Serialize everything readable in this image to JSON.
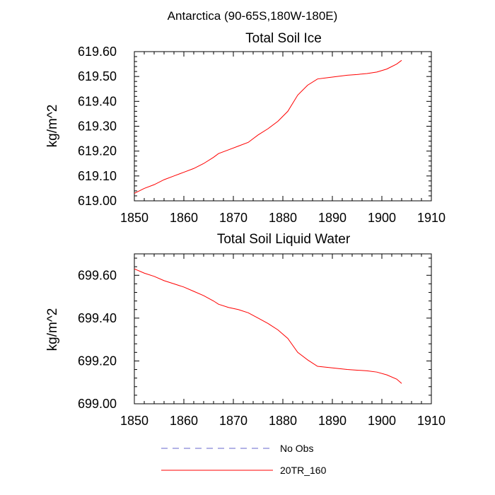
{
  "figure": {
    "title": "Antarctica (90-65S,180W-180E)"
  },
  "chart_data": [
    {
      "type": "line",
      "title": "Total Soil Ice",
      "xlabel": "",
      "ylabel": "kg/m^2",
      "xlim": [
        1850,
        1910
      ],
      "ylim": [
        619.0,
        619.6
      ],
      "xticks": [
        1850,
        1860,
        1870,
        1880,
        1890,
        1900,
        1910
      ],
      "xtick_labels": [
        "1850",
        "1860",
        "1870",
        "1880",
        "1890",
        "1900",
        "1910"
      ],
      "yticks": [
        619.0,
        619.1,
        619.2,
        619.3,
        619.4,
        619.5,
        619.6
      ],
      "ytick_labels": [
        "619.00",
        "619.10",
        "619.20",
        "619.30",
        "619.40",
        "619.50",
        "619.60"
      ],
      "series": [
        {
          "name": "20TR_160",
          "color": "#ff0000",
          "x": [
            1850,
            1852,
            1854,
            1856,
            1858,
            1860,
            1862,
            1864,
            1866,
            1867,
            1869,
            1871,
            1873,
            1875,
            1877,
            1879,
            1881,
            1883,
            1885,
            1887,
            1889,
            1891,
            1893,
            1895,
            1897,
            1899,
            1901,
            1903,
            1904
          ],
          "values": [
            619.03,
            619.05,
            619.065,
            619.085,
            619.1,
            619.115,
            619.13,
            619.15,
            619.175,
            619.19,
            619.205,
            619.22,
            619.235,
            619.265,
            619.29,
            619.32,
            619.36,
            619.425,
            619.465,
            619.49,
            619.495,
            619.5,
            619.505,
            619.508,
            619.512,
            619.518,
            619.53,
            619.55,
            619.565
          ]
        }
      ]
    },
    {
      "type": "line",
      "title": "Total Soil Liquid Water",
      "xlabel": "",
      "ylabel": "kg/m^2",
      "xlim": [
        1850,
        1910
      ],
      "ylim": [
        699.0,
        699.7
      ],
      "xticks": [
        1850,
        1860,
        1870,
        1880,
        1890,
        1900,
        1910
      ],
      "xtick_labels": [
        "1850",
        "1860",
        "1870",
        "1880",
        "1890",
        "1900",
        "1910"
      ],
      "yticks": [
        699.0,
        699.2,
        699.4,
        699.6
      ],
      "ytick_labels": [
        "699.00",
        "699.20",
        "699.40",
        "699.60"
      ],
      "series": [
        {
          "name": "20TR_160",
          "color": "#ff0000",
          "x": [
            1850,
            1852,
            1854,
            1856,
            1858,
            1860,
            1862,
            1864,
            1866,
            1867,
            1869,
            1871,
            1873,
            1875,
            1877,
            1879,
            1881,
            1883,
            1885,
            1887,
            1889,
            1891,
            1893,
            1895,
            1897,
            1899,
            1901,
            1903,
            1904
          ],
          "values": [
            699.63,
            699.61,
            699.595,
            699.575,
            699.56,
            699.545,
            699.525,
            699.505,
            699.48,
            699.465,
            699.45,
            699.44,
            699.425,
            699.4,
            699.375,
            699.345,
            699.305,
            699.24,
            699.205,
            699.175,
            699.17,
            699.165,
            699.16,
            699.157,
            699.154,
            699.148,
            699.135,
            699.115,
            699.095
          ]
        }
      ]
    }
  ],
  "legend": {
    "entries": [
      {
        "label": "No Obs",
        "color": "#6666cc",
        "style": "dashed"
      },
      {
        "label": "20TR_160",
        "color": "#ff0000",
        "style": "solid"
      }
    ]
  }
}
